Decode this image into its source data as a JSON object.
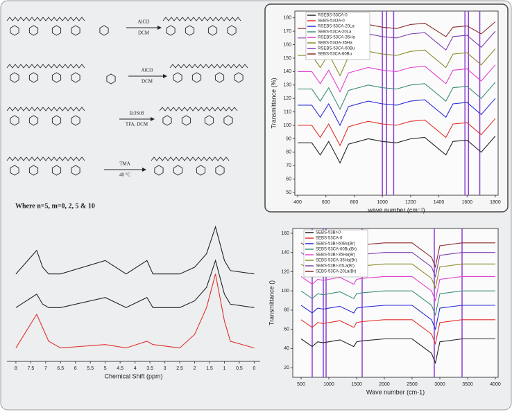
{
  "scheme": {
    "reactions": [
      {
        "above": "AlCl3",
        "below": "DCM"
      },
      {
        "above": "AlCl3",
        "below": "DCM"
      },
      {
        "above": "Et3SiH",
        "below": "TFA, DCM"
      },
      {
        "above": "TMA",
        "below": "40 °C"
      }
    ],
    "note": "Where n=5, m=0, 2, 5 & 10"
  },
  "chart_data": [
    {
      "type": "line",
      "x_label": "wave number (cm⁻¹)",
      "y_label": "Transmittance (%)",
      "x": [
        400,
        500,
        560,
        620,
        700,
        760,
        900,
        1000,
        1100,
        1200,
        1300,
        1450,
        1500,
        1600,
        1700,
        1800
      ],
      "xlim": [
        380,
        1820
      ],
      "ylim": [
        48,
        185
      ],
      "xticks": [
        400,
        600,
        800,
        1000,
        1200,
        1400,
        1600,
        1800
      ],
      "yticks": [
        50,
        60,
        70,
        80,
        90,
        100,
        110,
        120,
        130,
        140,
        150,
        160,
        170,
        180
      ],
      "legend": "upper-left",
      "reference_color": "#8a3fd1",
      "reference_lines": [
        1000,
        1030,
        1080,
        1585,
        1610,
        1690
      ],
      "series": [
        {
          "name": "RSEBS-53CA-0",
          "color": "#222222",
          "values": [
            87,
            87,
            78,
            88,
            72,
            86,
            90,
            88,
            87,
            90,
            91,
            78,
            88,
            89,
            80,
            92
          ]
        },
        {
          "name": "SEBS-53OA-0",
          "color": "#e0302a",
          "values": [
            100,
            100,
            91,
            101,
            85,
            99,
            103,
            101,
            100,
            103,
            104,
            91,
            101,
            102,
            93,
            105
          ]
        },
        {
          "name": "RSEBS-53CA-20La",
          "color": "#2b2bd8",
          "values": [
            115,
            115,
            106,
            116,
            100,
            114,
            118,
            116,
            115,
            118,
            119,
            106,
            116,
            117,
            108,
            120
          ]
        },
        {
          "name": "SEBS-53CA-20La",
          "color": "#3d8c7a",
          "values": [
            127,
            127,
            118,
            128,
            112,
            126,
            130,
            128,
            127,
            130,
            131,
            118,
            128,
            129,
            120,
            132
          ]
        },
        {
          "name": "RSEBS-53CA-35Ha",
          "color": "#e040d0",
          "values": [
            140,
            140,
            131,
            141,
            125,
            139,
            143,
            141,
            140,
            143,
            144,
            131,
            141,
            142,
            133,
            145
          ]
        },
        {
          "name": "SEBS-53OA-35Ha",
          "color": "#8a8a2a",
          "values": [
            152,
            152,
            143,
            153,
            137,
            151,
            155,
            153,
            152,
            155,
            156,
            143,
            153,
            154,
            145,
            157
          ]
        },
        {
          "name": "RSEBS-53CA-60Bu",
          "color": "#7a3fb0",
          "values": [
            165,
            165,
            156,
            166,
            150,
            164,
            168,
            166,
            165,
            168,
            169,
            156,
            166,
            167,
            158,
            170
          ]
        },
        {
          "name": "SEBS-53CA-60Bu",
          "color": "#8a2a2a",
          "values": [
            172,
            172,
            166,
            173,
            162,
            171,
            175,
            173,
            172,
            175,
            176,
            166,
            173,
            174,
            168,
            177
          ]
        }
      ]
    },
    {
      "type": "line",
      "x_label": "Chemical Shift (ppm)",
      "x": [
        8.0,
        7.3,
        7.1,
        6.9,
        6.5,
        5.0,
        4.3,
        3.6,
        3.4,
        2.5,
        2.0,
        1.6,
        1.3,
        1.0,
        0.8,
        0.0
      ],
      "xlim": [
        8.3,
        -0.2
      ],
      "ylim": [
        0,
        42
      ],
      "xticks": [
        8.0,
        7.5,
        7.0,
        6.5,
        6.0,
        5.5,
        5.0,
        4.5,
        4.0,
        3.5,
        3.0,
        2.5,
        2.0,
        1.5,
        1.0,
        0.5,
        0
      ],
      "series": [
        {
          "color": "#222222",
          "values": [
            26,
            33,
            28,
            26,
            26,
            30,
            26,
            30,
            26,
            26,
            28,
            32,
            40,
            30,
            27,
            26
          ]
        },
        {
          "color": "#222222",
          "values": [
            16,
            20,
            17,
            16,
            16,
            19,
            16,
            19,
            16,
            16,
            18,
            22,
            30,
            20,
            17,
            16
          ]
        },
        {
          "color": "#e0302a",
          "values": [
            4,
            14,
            10,
            6,
            4,
            5,
            4,
            6,
            5,
            4,
            8,
            16,
            26,
            12,
            6,
            4
          ]
        }
      ]
    },
    {
      "type": "line",
      "x_label": "Wave number (cm-1)",
      "y_label": "Transmittance ()",
      "x": [
        500,
        700,
        800,
        900,
        1000,
        1200,
        1450,
        1500,
        1600,
        2000,
        2500,
        2850,
        2920,
        3000,
        3400,
        4000
      ],
      "xlim": [
        350,
        4050
      ],
      "ylim": [
        10,
        165
      ],
      "xticks": [
        500,
        1000,
        1500,
        2000,
        2500,
        3000,
        3500,
        4000
      ],
      "yticks": [
        20,
        40,
        60,
        80,
        100,
        120,
        140,
        160
      ],
      "legend": "upper-left",
      "reference_color": "#8a3fd1",
      "reference_lines": [
        700,
        900,
        950,
        1600,
        2900,
        3400
      ],
      "series": [
        {
          "name": "SEBS-53Br-0",
          "color": "#222222",
          "values": [
            50,
            42,
            47,
            46,
            47,
            49,
            42,
            47,
            48,
            50,
            50,
            35,
            25,
            47,
            50,
            50
          ]
        },
        {
          "name": "SEBS-53CA-0",
          "color": "#e0302a",
          "values": [
            70,
            62,
            67,
            66,
            67,
            69,
            62,
            67,
            68,
            70,
            70,
            55,
            45,
            67,
            70,
            70
          ]
        },
        {
          "name": "SEBS-53Br-60Bu(Br)",
          "color": "#2b2bd8",
          "values": [
            85,
            77,
            82,
            81,
            82,
            84,
            77,
            82,
            83,
            85,
            85,
            70,
            60,
            82,
            85,
            85
          ]
        },
        {
          "name": "SEBS-53CA-60Bu(Br)",
          "color": "#3d8c7a",
          "values": [
            100,
            92,
            97,
            96,
            97,
            99,
            92,
            97,
            98,
            100,
            100,
            85,
            75,
            97,
            100,
            100
          ]
        },
        {
          "name": "SEBS-53Br-35Ha(Br)",
          "color": "#e040d0",
          "values": [
            115,
            107,
            112,
            111,
            112,
            114,
            107,
            112,
            113,
            115,
            115,
            100,
            90,
            112,
            115,
            115
          ]
        },
        {
          "name": "SEBS-53CA-35Ha(Br)",
          "color": "#8a8a2a",
          "values": [
            128,
            120,
            125,
            124,
            125,
            127,
            120,
            125,
            126,
            128,
            128,
            113,
            103,
            125,
            128,
            128
          ]
        },
        {
          "name": "SEBS-53Br-20La(Br)",
          "color": "#7a3fb0",
          "values": [
            140,
            132,
            137,
            136,
            137,
            139,
            132,
            137,
            138,
            140,
            140,
            125,
            115,
            137,
            140,
            140
          ]
        },
        {
          "name": "SEBS-53CA-20La(Br)",
          "color": "#8a2a2a",
          "values": [
            150,
            142,
            147,
            146,
            147,
            149,
            142,
            147,
            148,
            150,
            150,
            135,
            125,
            147,
            150,
            150
          ]
        }
      ]
    }
  ]
}
